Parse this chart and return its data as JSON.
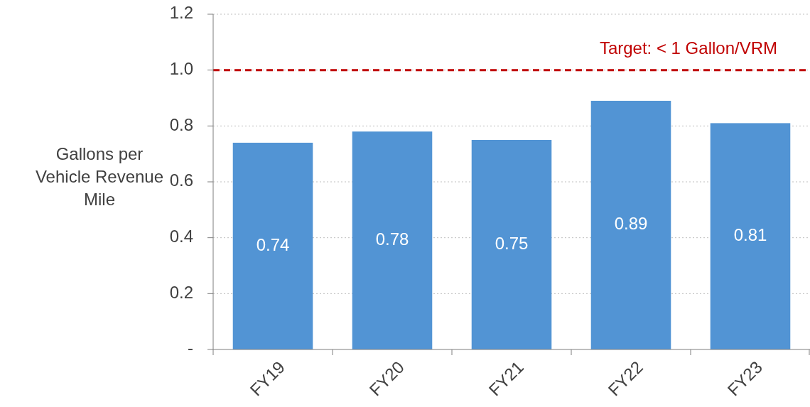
{
  "chart_data": {
    "type": "bar",
    "ylabel": "Gallons per Vehicle Revenue Mile",
    "categories": [
      "FY19",
      "FY20",
      "FY21",
      "FY22",
      "FY23"
    ],
    "values": [
      0.74,
      0.78,
      0.75,
      0.89,
      0.81
    ],
    "color": "#5294d4",
    "ylim": [
      0,
      1.2
    ],
    "yticks": [
      {
        "value": 0,
        "label": "-"
      },
      0.2,
      0.4,
      0.6,
      0.8,
      {
        "value": 1,
        "label": "1.0"
      },
      {
        "value": 1.2,
        "label": "1.2"
      }
    ],
    "grid": "y",
    "data_labels": true,
    "ref_lines": [
      {
        "axis": "y",
        "value": 1,
        "label": "Target: < 1 Gallon/VRM",
        "color": "#c00000",
        "line_style": "dashed"
      }
    ]
  }
}
